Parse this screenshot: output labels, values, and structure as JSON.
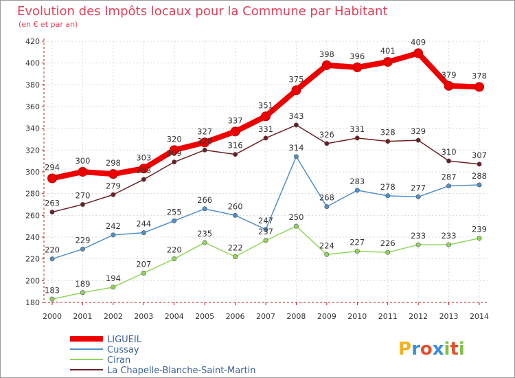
{
  "chart_data": {
    "type": "line",
    "title": "Evolution des Impôts locaux pour la Commune par Habitant",
    "subtitle": "(en € et par an)",
    "xlabel": "",
    "ylabel": "",
    "ylim": [
      180,
      420
    ],
    "yticks": [
      180,
      200,
      220,
      240,
      260,
      280,
      300,
      320,
      340,
      360,
      380,
      400,
      420
    ],
    "x": [
      "2000",
      "2001",
      "2002",
      "2003",
      "2004",
      "2005",
      "2006",
      "2007",
      "2008",
      "2009",
      "2010",
      "2011",
      "2012",
      "2013",
      "2014"
    ],
    "grid": true,
    "legend_position": "bottom-left",
    "series": [
      {
        "name": "LIGUEIL",
        "color": "#ee0000",
        "values": [
          294,
          300,
          298,
          303,
          320,
          327,
          337,
          351,
          375,
          398,
          396,
          401,
          409,
          379,
          378
        ]
      },
      {
        "name": "Cussay",
        "color": "#4f8fc8",
        "values": [
          220,
          229,
          242,
          244,
          255,
          266,
          260,
          247,
          314,
          268,
          283,
          278,
          277,
          287,
          288
        ]
      },
      {
        "name": "Ciran",
        "color": "#8fd65a",
        "values": [
          183,
          189,
          194,
          207,
          220,
          235,
          222,
          237,
          250,
          224,
          227,
          226,
          233,
          233,
          239
        ]
      },
      {
        "name": "La Chapelle-Blanche-Saint-Martin",
        "color": "#6b1f23",
        "values": [
          263,
          270,
          279,
          293,
          309,
          320,
          316,
          331,
          343,
          326,
          331,
          328,
          329,
          310,
          307
        ]
      }
    ]
  },
  "logo": {
    "letters": [
      "P",
      "r",
      "o",
      "x",
      "i",
      "t",
      "i"
    ],
    "colors": [
      "#f2b21b",
      "#3a8fd8",
      "#e3502a",
      "#3a8fd8",
      "#7cc242",
      "#e3502a",
      "#7cc242"
    ]
  }
}
